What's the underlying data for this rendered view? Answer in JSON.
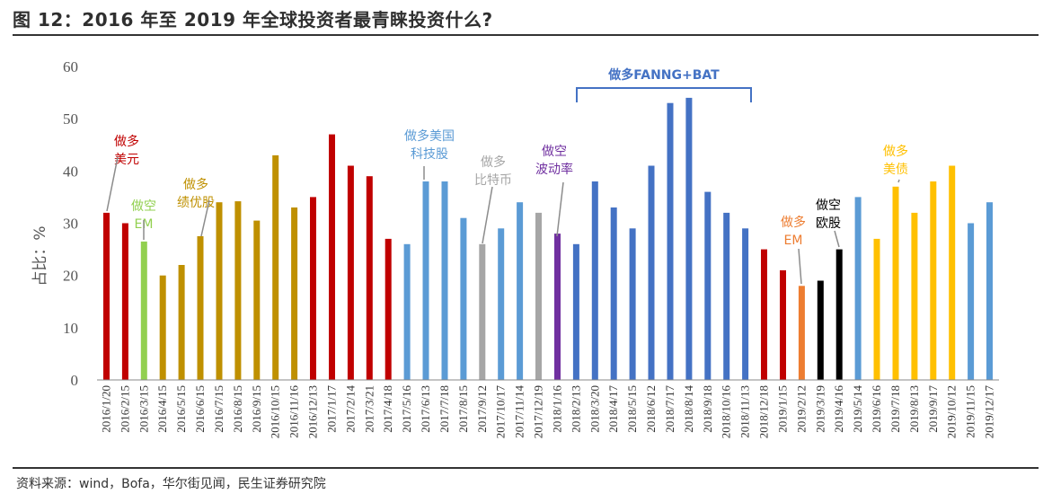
{
  "title": "图 12：2016 年至 2019 年全球投资者最青睐投资什么?",
  "source": "资料来源：wind，Bofa，华尔街见闻，民生证券研究院",
  "chart_data": {
    "type": "bar",
    "ylabel": "占比：%",
    "ylim": [
      0,
      60
    ],
    "yticks": [
      0,
      10,
      20,
      30,
      40,
      50,
      60
    ],
    "grid": false,
    "colors": {
      "red": "#C00000",
      "green": "#92D050",
      "gold": "#BF9000",
      "lightblue": "#5B9BD5",
      "gray": "#A6A6A6",
      "purple": "#7030A0",
      "blue": "#4472C4",
      "orange": "#ED7D31",
      "black": "#000000",
      "yellow": "#FFC000"
    },
    "categories": [
      "2016/1/20",
      "2016/2/15",
      "2016/3/15",
      "2016/4/15",
      "2016/5/15",
      "2016/6/15",
      "2016/7/15",
      "2016/8/15",
      "2016/9/15",
      "2016/10/15",
      "2016/11/16",
      "2016/12/13",
      "2017/1/17",
      "2017/2/14",
      "2017/3/21",
      "2017/4/18",
      "2017/5/16",
      "2017/6/13",
      "2017/7/18",
      "2017/8/15",
      "2017/9/12",
      "2017/10/17",
      "2017/11/14",
      "2017/12/19",
      "2018/1/16",
      "2018/2/13",
      "2018/3/20",
      "2018/4/17",
      "2018/5/15",
      "2018/6/12",
      "2018/7/17",
      "2018/8/14",
      "2018/9/18",
      "2018/10/16",
      "2018/11/13",
      "2018/12/18",
      "2019/1/15",
      "2019/2/12",
      "2019/3/19",
      "2019/4/16",
      "2019/5/14",
      "2019/6/16",
      "2019/7/18",
      "2019/8/13",
      "2019/9/17",
      "2019/10/12",
      "2019/11/15",
      "2019/12/17"
    ],
    "values": [
      32,
      30,
      26.5,
      20,
      22,
      27.5,
      34,
      34.2,
      30.5,
      43,
      33,
      35,
      47,
      41,
      39,
      27,
      26,
      38,
      38,
      31,
      26,
      29,
      34,
      32,
      28,
      26,
      38,
      33,
      29,
      41,
      53,
      54,
      36,
      32,
      29,
      25,
      21,
      18,
      19,
      25,
      35,
      27,
      37,
      32,
      38,
      41,
      30,
      34
    ],
    "bar_colors": [
      "red",
      "red",
      "green",
      "gold",
      "gold",
      "gold",
      "gold",
      "gold",
      "gold",
      "gold",
      "gold",
      "red",
      "red",
      "red",
      "red",
      "red",
      "lightblue",
      "lightblue",
      "lightblue",
      "lightblue",
      "gray",
      "lightblue",
      "lightblue",
      "gray",
      "purple",
      "blue",
      "blue",
      "blue",
      "blue",
      "blue",
      "blue",
      "blue",
      "blue",
      "blue",
      "blue",
      "red",
      "red",
      "orange",
      "black",
      "black",
      "lightblue",
      "yellow",
      "yellow",
      "yellow",
      "yellow",
      "yellow",
      "lightblue",
      "lightblue"
    ],
    "annotations": [
      {
        "lines": [
          "做多",
          "美元"
        ],
        "color": "red",
        "target": 0
      },
      {
        "lines": [
          "做空",
          "EM"
        ],
        "color": "green",
        "target": 2
      },
      {
        "lines": [
          "做多",
          "绩优股"
        ],
        "color": "gold",
        "target": 5
      },
      {
        "lines": [
          "做多美国",
          "科技股"
        ],
        "color": "lightblue",
        "target": 17
      },
      {
        "lines": [
          "做多",
          "比特币"
        ],
        "color": "gray",
        "target": 20
      },
      {
        "lines": [
          "做空",
          "波动率"
        ],
        "color": "purple",
        "target": 24
      },
      {
        "lines": [
          "做多",
          "EM"
        ],
        "color": "orange",
        "target": 37
      },
      {
        "lines": [
          "做空",
          "欧股"
        ],
        "color": "black",
        "target": 39
      },
      {
        "lines": [
          "做多",
          "美债"
        ],
        "color": "yellow",
        "target": 42
      }
    ],
    "bracket": {
      "label": "做多FANNG+BAT",
      "from": 25,
      "to": 34,
      "color": "blue"
    }
  }
}
